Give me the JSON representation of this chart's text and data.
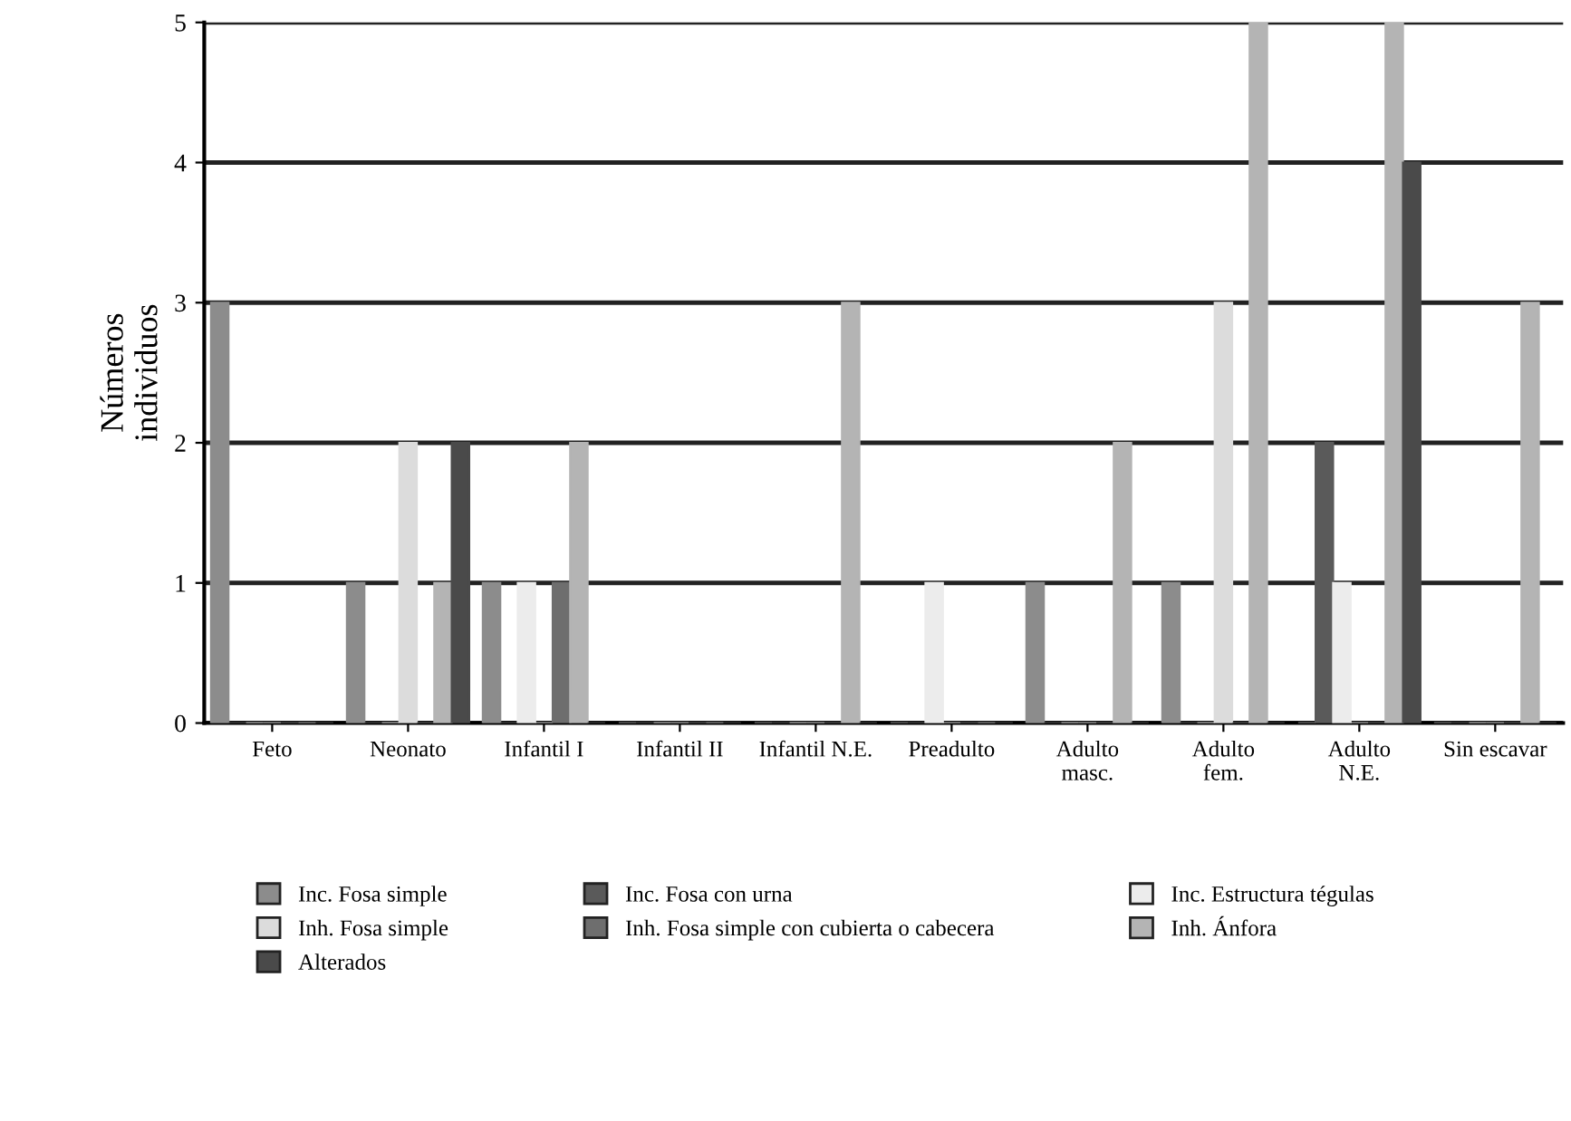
{
  "chart_data": {
    "type": "bar",
    "ylabel": "Números\nindividuos",
    "categories": [
      "Feto",
      "Neonato",
      "Infantil I",
      "Infantil II",
      "Infantil N.E.",
      "Preadulto",
      "Adulto\nmasc.",
      "Adulto\nfem.",
      "Adulto\nN.E.",
      "Sin escavar"
    ],
    "series": [
      {
        "name": "Inc. Fosa simple",
        "color": "#8c8c8c",
        "values": [
          3,
          1,
          1,
          0,
          0,
          0,
          1,
          1,
          0,
          0
        ]
      },
      {
        "name": "Inc. Fosa con urna",
        "color": "#5a5a5a",
        "values": [
          0,
          0,
          0,
          0,
          0,
          0,
          0,
          0,
          2,
          0
        ]
      },
      {
        "name": "Inc. Estructura tégulas",
        "color": "#ececec",
        "values": [
          0,
          0,
          1,
          0,
          0,
          1,
          0,
          0,
          1,
          0
        ]
      },
      {
        "name": "Inh. Fosa simple",
        "color": "#dcdcdc",
        "values": [
          0,
          2,
          0,
          0,
          0,
          0,
          0,
          3,
          0,
          0
        ]
      },
      {
        "name": "Inh. Fosa simple con cubierta o cabecera",
        "color": "#6e6e6e",
        "values": [
          0,
          0,
          1,
          0,
          0,
          0,
          0,
          0,
          0,
          0
        ]
      },
      {
        "name": "Inh. Ánfora",
        "color": "#b4b4b4",
        "values": [
          0,
          1,
          2,
          0,
          3,
          0,
          2,
          5,
          5,
          3
        ]
      },
      {
        "name": "Alterados",
        "color": "#4a4a4a",
        "values": [
          0,
          2,
          0,
          0,
          0,
          0,
          0,
          0,
          4,
          0
        ]
      }
    ],
    "ylim": [
      0,
      5
    ],
    "yticks": [
      0,
      1,
      2,
      3,
      4,
      5
    ],
    "grid": "y",
    "legend": "bottom"
  }
}
